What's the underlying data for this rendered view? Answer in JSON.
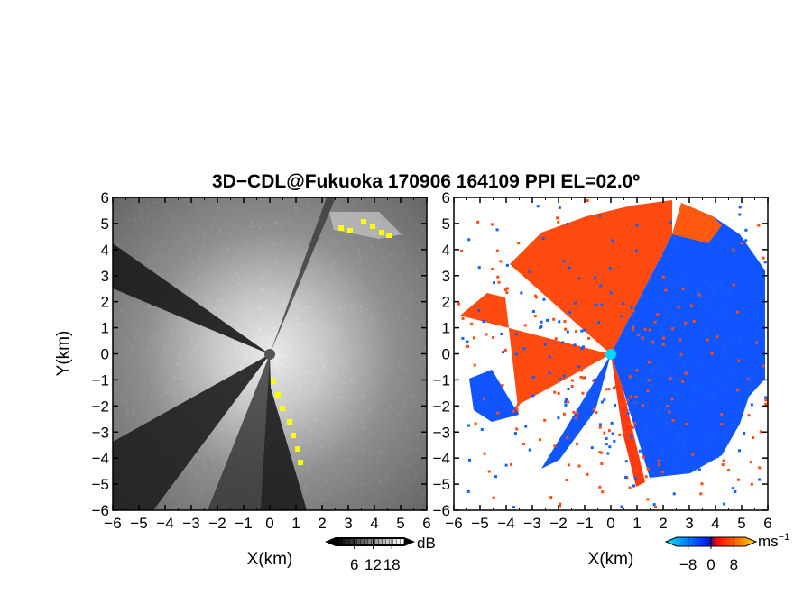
{
  "chart_data": {
    "title": "3D−CDL@Fukuoka 170906 164109 PPI EL=02.0º",
    "panels": [
      {
        "id": "reflectivity",
        "type": "heatmap",
        "xlabel": "X(km)",
        "ylabel": "Y(km)",
        "xlim": [
          -6,
          6
        ],
        "ylim": [
          -6,
          6
        ],
        "x_ticks": [
          "−6",
          "−5",
          "−4",
          "−3",
          "−2",
          "−1",
          "0",
          "1",
          "2",
          "3",
          "4",
          "5",
          "6"
        ],
        "y_ticks": [
          "−6",
          "−5",
          "−4",
          "−3",
          "−2",
          "−1",
          "0",
          "1",
          "2",
          "3",
          "4",
          "5",
          "6"
        ],
        "colormap": "grayscale",
        "colorbar": {
          "unit": "dB",
          "tick_labels": [
            "6",
            "12",
            "18"
          ],
          "range": [
            0,
            22
          ]
        },
        "highlight_color": "#ffff00"
      },
      {
        "id": "doppler-velocity",
        "type": "heatmap",
        "xlabel": "X(km)",
        "xlim": [
          -6,
          6
        ],
        "ylim": [
          -6,
          6
        ],
        "x_ticks": [
          "−6",
          "−5",
          "−4",
          "−3",
          "−2",
          "−1",
          "0",
          "1",
          "2",
          "3",
          "4",
          "5",
          "6"
        ],
        "y_ticks": [
          "−6",
          "−5",
          "−4",
          "−3",
          "−2",
          "−1",
          "0",
          "1",
          "2",
          "3",
          "4",
          "5",
          "6"
        ],
        "colormap": "blue-red diverging",
        "colorbar": {
          "unit": "ms⁻¹",
          "tick_labels": [
            "−8",
            "0",
            "8"
          ],
          "range": [
            -12,
            12
          ]
        },
        "colors": {
          "approaching": "#1060ff",
          "receding": "#ff4a10"
        }
      }
    ]
  }
}
